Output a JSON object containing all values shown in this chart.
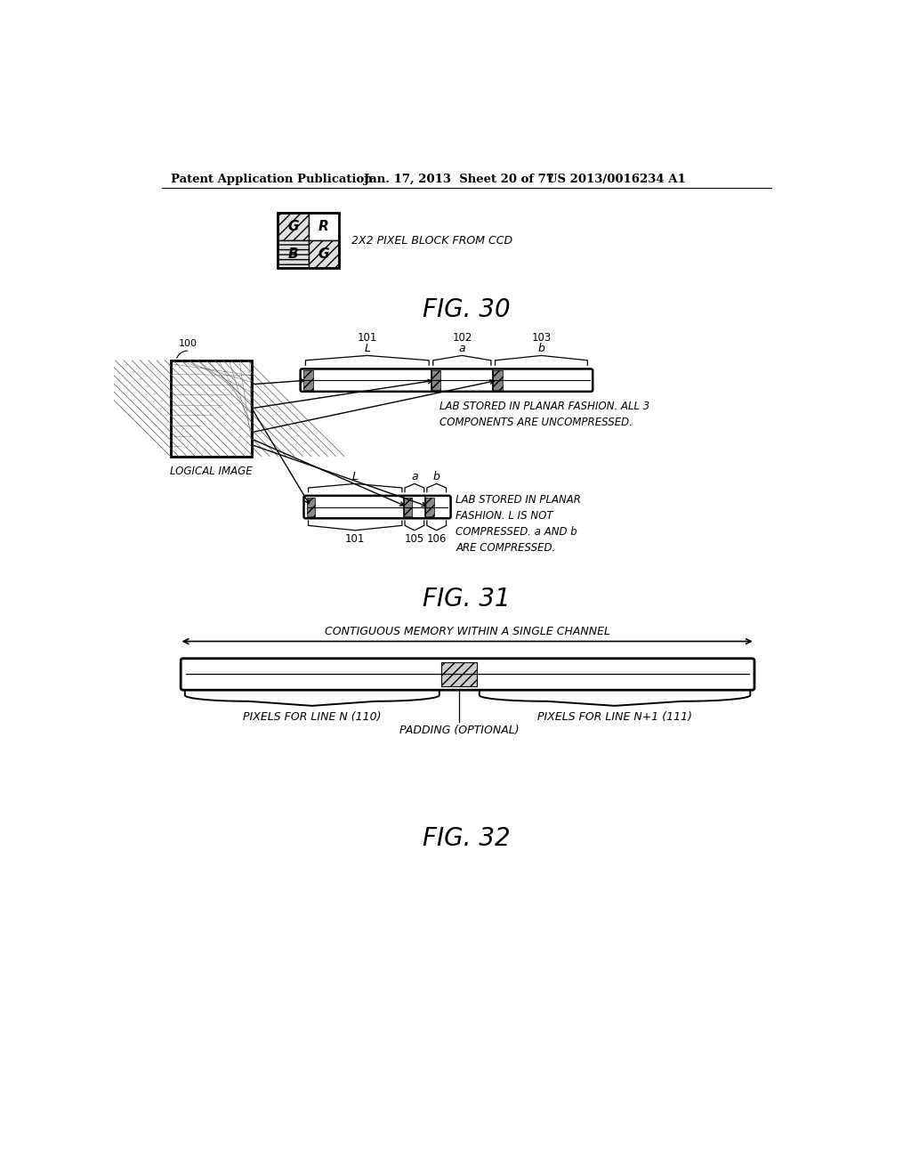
{
  "bg_color": "#ffffff",
  "header_left": "Patent Application Publication",
  "header_mid": "Jan. 17, 2013  Sheet 20 of 77",
  "header_right": "US 2013/0016234 A1",
  "fig30_label": "FIG. 30",
  "fig31_label": "FIG. 31",
  "fig32_label": "FIG. 32",
  "fig30_caption": "2X2 PIXEL BLOCK FROM CCD",
  "fig31_text1": "LAB STORED IN PLANAR FASHION. ALL 3\nCOMPONENTS ARE UNCOMPRESSED.",
  "fig31_text2": "LAB STORED IN PLANAR\nFASHION. L IS NOT\nCOMPRESSED. a AND b\nARE COMPRESSED.",
  "fig31_logical_image": "LOGICAL IMAGE",
  "fig32_text_top": "CONTIGUOUS MEMORY WITHIN A SINGLE CHANNEL",
  "fig32_label_left": "PIXELS FOR LINE N (110)",
  "fig32_label_right": "PIXELS FOR LINE N+1 (111)",
  "fig32_label_mid": "PADDING (OPTIONAL)"
}
